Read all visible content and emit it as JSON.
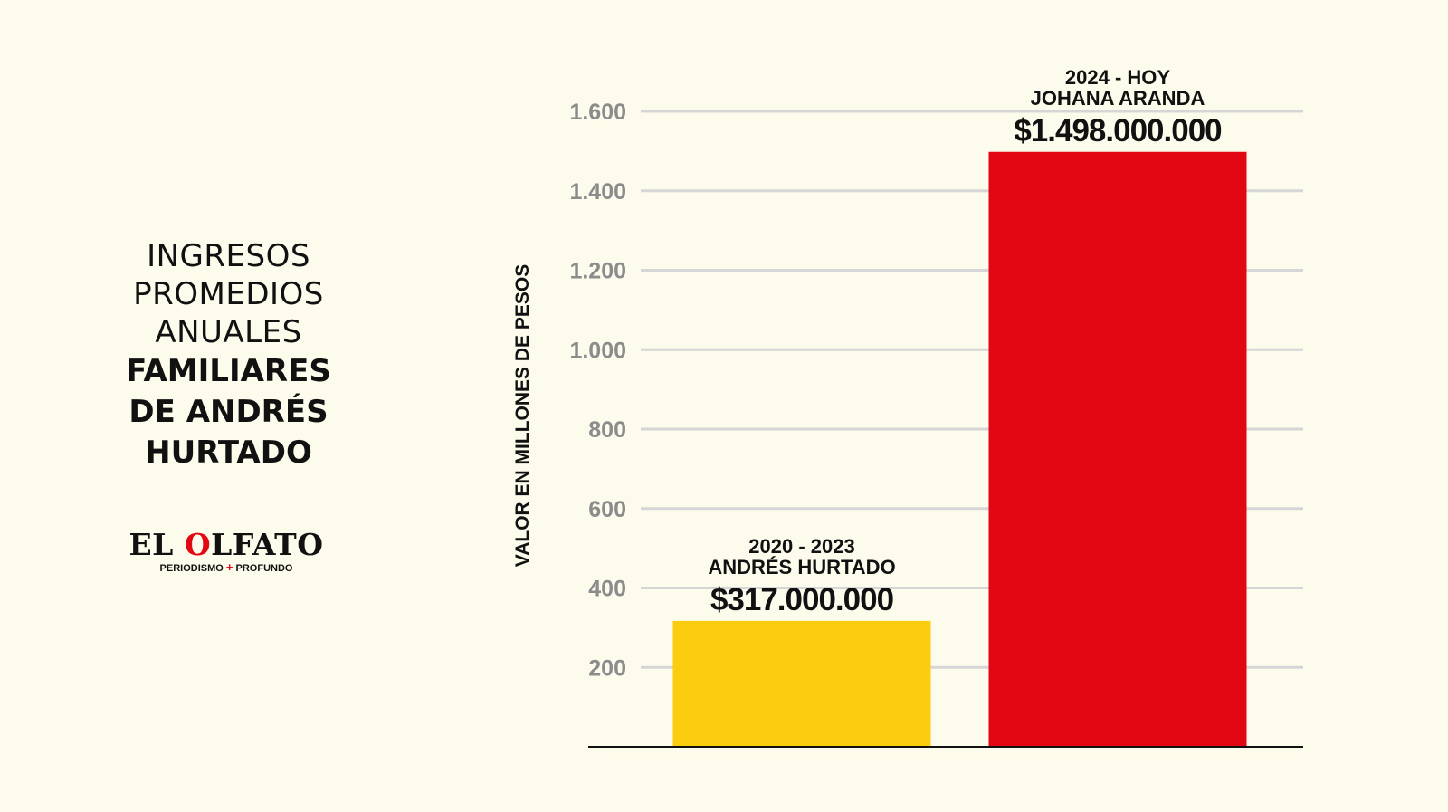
{
  "title": {
    "light_lines": [
      "INGRESOS",
      "PROMEDIOS",
      "ANUALES"
    ],
    "bold_lines": [
      "FAMILIARES",
      "DE ANDRÉS",
      "HURTADO"
    ]
  },
  "logo": {
    "name_part1": "EL ",
    "name_o": "O",
    "name_part2": "LFATO",
    "tagline_left": "PERIODISMO",
    "tagline_plus": "+",
    "tagline_right": "PROFUNDO"
  },
  "colors": {
    "background": "#FDFBEC",
    "bar_1": "#FCCC0F",
    "bar_2": "#E30613",
    "grid": "#D6D6D6",
    "tick_text": "#8C8C8C",
    "text": "#111111",
    "logo_accent": "#E30613"
  },
  "chart_data": {
    "type": "bar",
    "ylabel": "VALOR EN MILLONES DE PESOS",
    "ylim": [
      0,
      1600
    ],
    "yticks": [
      200,
      400,
      600,
      800,
      1000,
      1200,
      1400,
      1600
    ],
    "ytick_labels": [
      "200",
      "400",
      "600",
      "800",
      "1.000",
      "1.200",
      "1.400",
      "1.600"
    ],
    "grid": true,
    "bars": [
      {
        "period": "2020 - 2023",
        "person": "ANDRÉS HURTADO",
        "value": 317,
        "value_label": "$317.000.000",
        "color": "#FCCC0F"
      },
      {
        "period": "2024 - HOY",
        "person": "JOHANA ARANDA",
        "value": 1498,
        "value_label": "$1.498.000.000",
        "color": "#E30613"
      }
    ]
  }
}
